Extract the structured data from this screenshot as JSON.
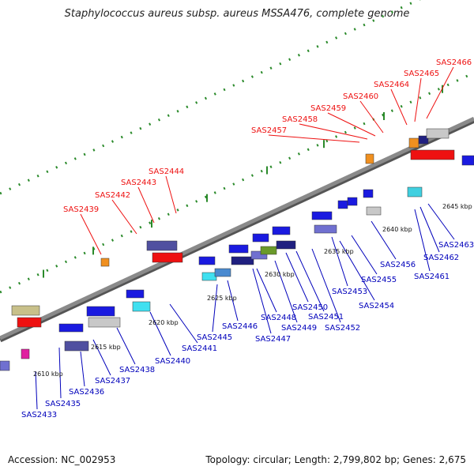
{
  "title": "Staphylococcus aureus subsp. aureus MSSA476, complete genome",
  "accession": "Accession: NC_002953",
  "summary": "Topology: circular; Length: 2,799,802 bp; Genes: 2,675",
  "colors": {
    "forward_label": "#ee1111",
    "reverse_label": "#0000bb",
    "backbone": "#8a8a8a",
    "tick": "#2a8a2a"
  },
  "scale_labels": [
    "2610 kbp",
    "2615 kbp",
    "2620 kbp",
    "2625 kbp",
    "2630 kbp",
    "2635 kbp",
    "2640 kbp",
    "2645 kbp"
  ],
  "forward_genes": [
    "SAS2439",
    "SAS2442",
    "SAS2443",
    "SAS2444",
    "SAS2457",
    "SAS2458",
    "SAS2459",
    "SAS2460",
    "SAS2464",
    "SAS2465",
    "SAS2466"
  ],
  "reverse_genes": [
    "SAS2433",
    "SAS2435",
    "SAS2436",
    "SAS2437",
    "SAS2438",
    "SAS2440",
    "SAS2441",
    "SAS2445",
    "SAS2446",
    "SAS2447",
    "SAS2448",
    "SAS2449",
    "SAS2450",
    "SAS2451",
    "SAS2452",
    "SAS2453",
    "SAS2454",
    "SAS2455",
    "SAS2456",
    "SAS2461",
    "SAS2462",
    "SAS2463"
  ]
}
